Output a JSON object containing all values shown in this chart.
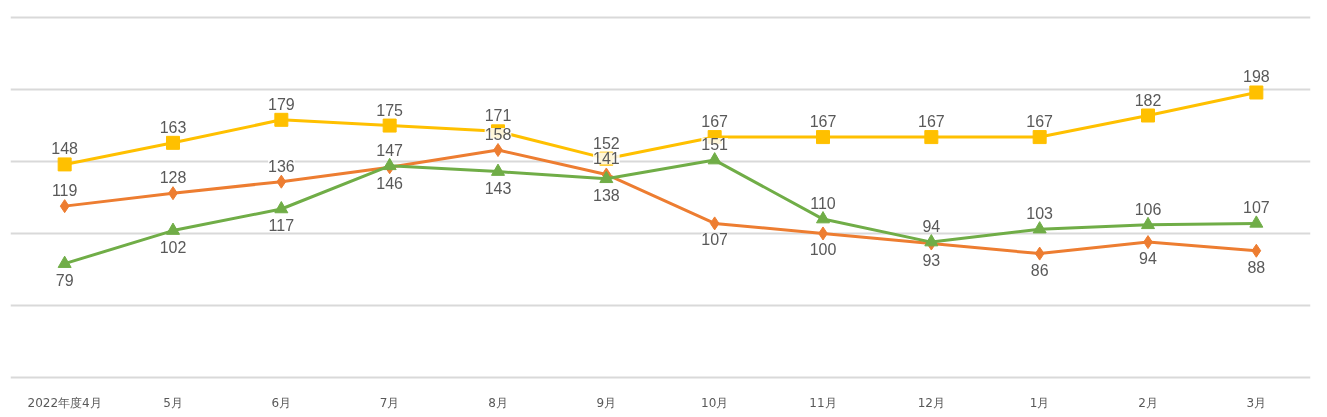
{
  "chart_data": {
    "type": "line",
    "categories": [
      "2022年度4月",
      "5月",
      "6月",
      "7月",
      "8月",
      "9月",
      "10月",
      "11月",
      "12月",
      "1月",
      "2月",
      "3月"
    ],
    "series": [
      {
        "color": "#ffc000",
        "marker": "square",
        "values": [
          148,
          163,
          179,
          175,
          171,
          152,
          167,
          167,
          167,
          167,
          182,
          198
        ]
      },
      {
        "color": "#ed7d31",
        "marker": "diamond",
        "values": [
          119,
          128,
          136,
          146,
          158,
          141,
          107,
          100,
          93,
          86,
          94,
          88
        ]
      },
      {
        "color": "#70ad47",
        "marker": "triangle",
        "values": [
          79,
          102,
          117,
          147,
          143,
          138,
          151,
          110,
          94,
          103,
          106,
          107
        ]
      }
    ],
    "ylim": [
      0,
      250
    ],
    "yticks": [
      {
        "value": 0,
        "label": null
      },
      {
        "value": 50,
        "label": null
      },
      {
        "value": 100,
        "label": null
      },
      {
        "value": 150,
        "label": null
      },
      {
        "value": 200,
        "label": null
      },
      {
        "value": 250,
        "label": null
      }
    ],
    "tick_labels": "x",
    "grid": "y",
    "data_labels": true
  }
}
